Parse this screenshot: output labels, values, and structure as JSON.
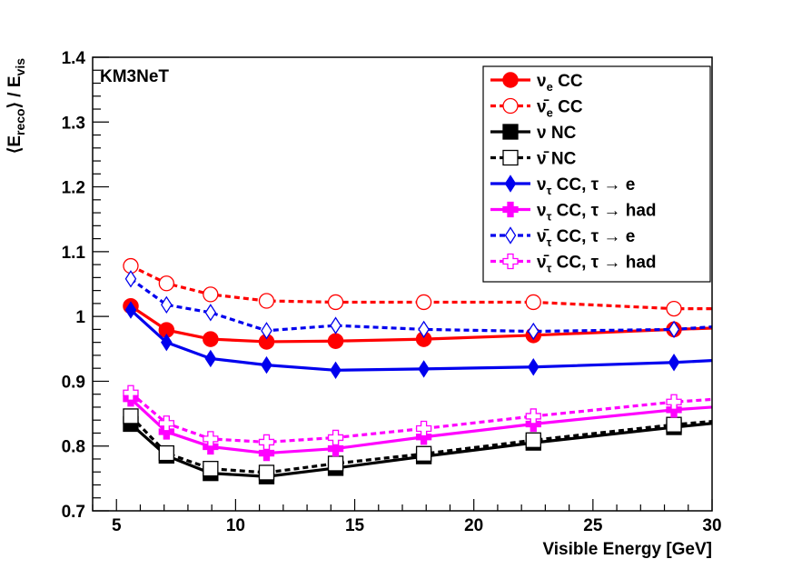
{
  "chart_data": {
    "type": "line",
    "xlabel": "Visible Energy [GeV]",
    "ylabel": "⟨E_reco⟩ / E_vis",
    "ylabel_parts": {
      "open": "⟨E",
      "sub1": "reco",
      "mid": "⟩ / E",
      "sub2": "vis"
    },
    "annotation": "KM3NeT",
    "xlim": [
      4,
      30
    ],
    "ylim": [
      0.7,
      1.4
    ],
    "xticks": [
      "5",
      "10",
      "15",
      "20",
      "25",
      "30"
    ],
    "yticks": [
      "0.7",
      "0.8",
      "0.9",
      "1",
      "1.1",
      "1.2",
      "1.3",
      "1.4"
    ],
    "grid": false,
    "legend_position": "top-right",
    "x": [
      5.6,
      7.1,
      8.95,
      11.3,
      14.2,
      17.9,
      22.5,
      28.4
    ],
    "series": [
      {
        "label": "ν_e CC",
        "name_main": "ν",
        "name_sub": "e",
        "name_rest": " CC",
        "color": "#ff0000",
        "dashed": false,
        "marker": "circle",
        "filled": true,
        "values": [
          1.016,
          0.979,
          0.965,
          0.961,
          0.962,
          0.965,
          0.971,
          0.98
        ],
        "tail": 0.982
      },
      {
        "label": "ν̄_e CC",
        "name_main": "ν̄",
        "name_sub": "e",
        "name_rest": " CC",
        "color": "#ff0000",
        "dashed": true,
        "marker": "circle",
        "filled": false,
        "values": [
          1.078,
          1.051,
          1.034,
          1.024,
          1.022,
          1.022,
          1.022,
          1.012
        ],
        "tail": 1.012
      },
      {
        "label": "ν NC",
        "name_main": "ν",
        "name_sub": "",
        "name_rest": " NC",
        "color": "#000000",
        "dashed": false,
        "marker": "square",
        "filled": true,
        "values": [
          0.834,
          0.785,
          0.758,
          0.753,
          0.766,
          0.784,
          0.805,
          0.829
        ],
        "tail": 0.835
      },
      {
        "label": "ν̄ NC",
        "name_main": "ν̄",
        "name_sub": "",
        "name_rest": " NC",
        "color": "#000000",
        "dashed": true,
        "marker": "square",
        "filled": false,
        "values": [
          0.846,
          0.789,
          0.765,
          0.759,
          0.773,
          0.788,
          0.809,
          0.833
        ],
        "tail": 0.838
      },
      {
        "label": "ν_τ CC, τ → e",
        "name_main": "ν",
        "name_sub": "τ",
        "name_rest": " CC, τ → e",
        "color": "#0000ee",
        "dashed": false,
        "marker": "diamond",
        "filled": true,
        "values": [
          1.01,
          0.96,
          0.935,
          0.925,
          0.917,
          0.919,
          0.922,
          0.929
        ],
        "tail": 0.932
      },
      {
        "label": "ν_τ CC, τ → had",
        "name_main": "ν",
        "name_sub": "τ",
        "name_rest": " CC, τ → had",
        "color": "#ff00ff",
        "dashed": false,
        "marker": "cross",
        "filled": true,
        "values": [
          0.873,
          0.822,
          0.799,
          0.789,
          0.796,
          0.814,
          0.834,
          0.856
        ],
        "tail": 0.86
      },
      {
        "label": "ν̄_τ CC, τ → e",
        "name_main": "ν̄",
        "name_sub": "τ",
        "name_rest": " CC, τ → e",
        "color": "#0000ee",
        "dashed": true,
        "marker": "diamond",
        "filled": false,
        "values": [
          1.058,
          1.018,
          1.006,
          0.978,
          0.986,
          0.98,
          0.977,
          0.98
        ],
        "tail": 0.984
      },
      {
        "label": "ν̄_τ CC, τ → had",
        "name_main": "ν̄",
        "name_sub": "τ",
        "name_rest": " CC, τ → had",
        "color": "#ff00ff",
        "dashed": true,
        "marker": "cross",
        "filled": false,
        "values": [
          0.882,
          0.835,
          0.811,
          0.806,
          0.813,
          0.827,
          0.846,
          0.868
        ],
        "tail": 0.872
      }
    ]
  }
}
